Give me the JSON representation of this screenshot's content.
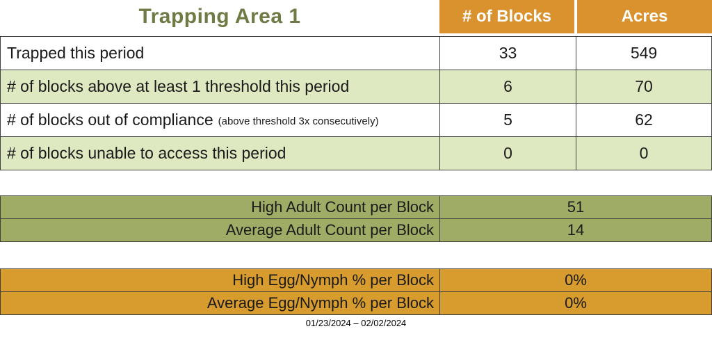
{
  "colors": {
    "header_orange": "#D9922D",
    "table_orange": "#D79B2E",
    "light_green": "#DFE9C1",
    "olive_green": "#9FAC65",
    "title_green": "#6E7B45",
    "border": "#3F3F3F",
    "text": "#1A1A1A",
    "header_text": "#FFFFFF"
  },
  "title": "Trapping Area 1",
  "summary_table": {
    "column_headers": [
      "# of Blocks",
      "Acres"
    ],
    "rows": [
      {
        "label": "Trapped this period",
        "blocks": "33",
        "acres": "549"
      },
      {
        "label": "# of blocks above at least 1 threshold this period",
        "blocks": "6",
        "acres": "70"
      },
      {
        "label": "# of blocks out of compliance",
        "note": "(above threshold 3x consecutively)",
        "blocks": "5",
        "acres": "62"
      },
      {
        "label": "# of blocks unable to access this period",
        "blocks": "0",
        "acres": "0"
      }
    ]
  },
  "adult_counts": {
    "rows": [
      {
        "label": "High Adult Count per Block",
        "value": "51"
      },
      {
        "label": "Average Adult Count per Block",
        "value": "14"
      }
    ]
  },
  "egg_nymph": {
    "rows": [
      {
        "label": "High Egg/Nymph % per Block",
        "value": "0%"
      },
      {
        "label": "Average Egg/Nymph % per Block",
        "value": "0%"
      }
    ]
  },
  "date_range": "01/23/2024 – 02/02/2024"
}
